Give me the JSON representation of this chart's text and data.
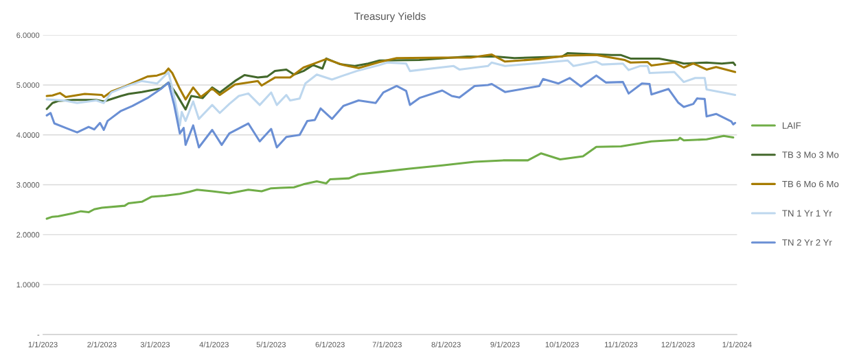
{
  "chart_data": {
    "type": "line",
    "title": "Treasury Yields",
    "xlim": [
      "2023-01-01",
      "2024-01-01"
    ],
    "xticks": [
      {
        "value": "2023-01-01",
        "label": "1/1/2023"
      },
      {
        "value": "2023-02-01",
        "label": "2/1/2023"
      },
      {
        "value": "2023-03-01",
        "label": "3/1/2023"
      },
      {
        "value": "2023-04-01",
        "label": "4/1/2023"
      },
      {
        "value": "2023-05-01",
        "label": "5/1/2023"
      },
      {
        "value": "2023-06-01",
        "label": "6/1/2023"
      },
      {
        "value": "2023-07-01",
        "label": "7/1/2023"
      },
      {
        "value": "2023-08-01",
        "label": "8/1/2023"
      },
      {
        "value": "2023-09-01",
        "label": "9/1/2023"
      },
      {
        "value": "2023-10-01",
        "label": "10/1/2023"
      },
      {
        "value": "2023-11-01",
        "label": "11/1/2023"
      },
      {
        "value": "2023-12-01",
        "label": "12/1/2023"
      },
      {
        "value": "2024-01-01",
        "label": "1/1/2024"
      }
    ],
    "ylim": [
      0,
      6
    ],
    "yticks": [
      {
        "value": 0,
        "label": "-"
      },
      {
        "value": 1,
        "label": "1.0000"
      },
      {
        "value": 2,
        "label": "2.0000"
      },
      {
        "value": 3,
        "label": "3.0000"
      },
      {
        "value": 4,
        "label": "4.0000"
      },
      {
        "value": 5,
        "label": "5.0000"
      },
      {
        "value": 6,
        "label": "6.0000"
      }
    ],
    "grid": "y",
    "legend": "right",
    "marker": "none",
    "line_style": "solid",
    "series": [
      {
        "name": "LAIF",
        "color": "#70ad47",
        "x": [
          "2023-01-03",
          "2023-01-06",
          "2023-01-09",
          "2023-01-17",
          "2023-01-21",
          "2023-01-25",
          "2023-01-28",
          "2023-02-01",
          "2023-02-13",
          "2023-02-15",
          "2023-02-22",
          "2023-02-27",
          "2023-03-06",
          "2023-03-14",
          "2023-03-19",
          "2023-03-23",
          "2023-03-31",
          "2023-04-09",
          "2023-04-19",
          "2023-04-26",
          "2023-05-01",
          "2023-05-06",
          "2023-05-13",
          "2023-05-18",
          "2023-05-25",
          "2023-05-30",
          "2023-06-01",
          "2023-06-11",
          "2023-06-16",
          "2023-06-28",
          "2023-07-12",
          "2023-07-30",
          "2023-08-16",
          "2023-08-31",
          "2023-09-13",
          "2023-09-20",
          "2023-09-30",
          "2023-10-12",
          "2023-10-19",
          "2023-11-01",
          "2023-11-17",
          "2023-12-01",
          "2023-12-02",
          "2023-12-04",
          "2023-12-16",
          "2023-12-25",
          "2023-12-30"
        ],
        "values": [
          2.32,
          2.36,
          2.37,
          2.43,
          2.47,
          2.45,
          2.51,
          2.54,
          2.58,
          2.63,
          2.66,
          2.76,
          2.78,
          2.82,
          2.86,
          2.9,
          2.87,
          2.83,
          2.9,
          2.87,
          2.93,
          2.94,
          2.95,
          3.01,
          3.07,
          3.03,
          3.11,
          3.13,
          3.21,
          3.26,
          3.32,
          3.39,
          3.46,
          3.49,
          3.49,
          3.63,
          3.51,
          3.57,
          3.76,
          3.77,
          3.87,
          3.9,
          3.94,
          3.89,
          3.91,
          3.98,
          3.95
        ]
      },
      {
        "name": "TB 3 Mo 3 Mo",
        "color": "#43682b",
        "x": [
          "2023-01-03",
          "2023-01-06",
          "2023-01-09",
          "2023-01-17",
          "2023-01-29",
          "2023-02-02",
          "2023-02-11",
          "2023-02-15",
          "2023-02-22",
          "2023-03-04",
          "2023-03-08",
          "2023-03-12",
          "2023-03-17",
          "2023-03-20",
          "2023-03-26",
          "2023-03-31",
          "2023-04-04",
          "2023-04-12",
          "2023-04-17",
          "2023-04-24",
          "2023-04-29",
          "2023-05-03",
          "2023-05-09",
          "2023-05-13",
          "2023-05-18",
          "2023-05-23",
          "2023-05-28",
          "2023-05-30",
          "2023-06-06",
          "2023-06-14",
          "2023-06-21",
          "2023-06-27",
          "2023-07-18",
          "2023-08-12",
          "2023-08-27",
          "2023-09-06",
          "2023-10-01",
          "2023-10-04",
          "2023-10-27",
          "2023-11-01",
          "2023-11-06",
          "2023-11-21",
          "2023-12-01",
          "2023-12-04",
          "2023-12-16",
          "2023-12-24",
          "2023-12-30",
          "2023-12-31"
        ],
        "values": [
          4.52,
          4.64,
          4.68,
          4.7,
          4.7,
          4.67,
          4.78,
          4.82,
          4.86,
          4.93,
          5.05,
          4.83,
          4.51,
          4.78,
          4.74,
          4.95,
          4.85,
          5.08,
          5.2,
          5.15,
          5.17,
          5.28,
          5.31,
          5.21,
          5.28,
          5.4,
          5.33,
          5.53,
          5.42,
          5.38,
          5.43,
          5.49,
          5.5,
          5.57,
          5.57,
          5.54,
          5.57,
          5.64,
          5.6,
          5.6,
          5.53,
          5.53,
          5.46,
          5.43,
          5.45,
          5.43,
          5.45,
          5.4
        ]
      },
      {
        "name": "TB 6 Mo 6 Mo",
        "color": "#a67c00",
        "x": [
          "2023-01-03",
          "2023-01-06",
          "2023-01-10",
          "2023-01-13",
          "2023-01-23",
          "2023-02-01",
          "2023-02-02",
          "2023-02-06",
          "2023-02-13",
          "2023-02-25",
          "2023-03-02",
          "2023-03-06",
          "2023-03-08",
          "2023-03-10",
          "2023-03-14",
          "2023-03-17",
          "2023-03-21",
          "2023-03-25",
          "2023-03-31",
          "2023-04-04",
          "2023-04-12",
          "2023-04-24",
          "2023-04-26",
          "2023-05-03",
          "2023-05-11",
          "2023-05-18",
          "2023-05-23",
          "2023-05-30",
          "2023-06-08",
          "2023-06-16",
          "2023-06-27",
          "2023-07-06",
          "2023-07-30",
          "2023-08-14",
          "2023-08-25",
          "2023-09-01",
          "2023-09-19",
          "2023-10-04",
          "2023-10-19",
          "2023-11-03",
          "2023-11-06",
          "2023-11-15",
          "2023-11-17",
          "2023-11-29",
          "2023-12-04",
          "2023-12-09",
          "2023-12-16",
          "2023-12-21",
          "2023-12-31"
        ],
        "values": [
          4.78,
          4.79,
          4.84,
          4.76,
          4.82,
          4.8,
          4.76,
          4.87,
          4.97,
          5.17,
          5.19,
          5.24,
          5.33,
          5.24,
          4.92,
          4.71,
          4.95,
          4.76,
          4.93,
          4.8,
          5.01,
          5.08,
          4.99,
          5.15,
          5.15,
          5.35,
          5.42,
          5.52,
          5.4,
          5.34,
          5.46,
          5.54,
          5.55,
          5.55,
          5.61,
          5.47,
          5.52,
          5.59,
          5.6,
          5.5,
          5.45,
          5.46,
          5.39,
          5.45,
          5.35,
          5.43,
          5.31,
          5.36,
          5.26
        ]
      },
      {
        "name": "TN 1 Yr 1 Yr",
        "color": "#bdd7ee",
        "x": [
          "2023-01-03",
          "2023-01-12",
          "2023-01-19",
          "2023-01-29",
          "2023-02-02",
          "2023-02-06",
          "2023-02-13",
          "2023-02-22",
          "2023-03-02",
          "2023-03-08",
          "2023-03-11",
          "2023-03-14",
          "2023-03-15",
          "2023-03-17",
          "2023-03-21",
          "2023-03-24",
          "2023-03-31",
          "2023-04-04",
          "2023-04-09",
          "2023-04-14",
          "2023-04-19",
          "2023-04-25",
          "2023-05-01",
          "2023-05-04",
          "2023-05-09",
          "2023-05-11",
          "2023-05-16",
          "2023-05-19",
          "2023-05-25",
          "2023-06-02",
          "2023-06-08",
          "2023-06-15",
          "2023-06-27",
          "2023-07-01",
          "2023-07-11",
          "2023-07-13",
          "2023-07-24",
          "2023-08-05",
          "2023-08-08",
          "2023-08-23",
          "2023-08-25",
          "2023-09-01",
          "2023-10-04",
          "2023-10-07",
          "2023-10-19",
          "2023-10-22",
          "2023-11-02",
          "2023-11-05",
          "2023-11-11",
          "2023-11-15",
          "2023-11-16",
          "2023-11-29",
          "2023-12-04",
          "2023-12-10",
          "2023-12-15",
          "2023-12-16",
          "2023-12-26",
          "2023-12-31"
        ],
        "values": [
          4.71,
          4.69,
          4.64,
          4.69,
          4.64,
          4.85,
          4.96,
          5.08,
          5.03,
          5.26,
          4.78,
          4.19,
          4.46,
          4.28,
          4.67,
          4.32,
          4.6,
          4.44,
          4.62,
          4.78,
          4.83,
          4.6,
          4.85,
          4.6,
          4.8,
          4.69,
          4.73,
          5.03,
          5.21,
          5.11,
          5.19,
          5.28,
          5.4,
          5.45,
          5.43,
          5.28,
          5.33,
          5.38,
          5.31,
          5.38,
          5.45,
          5.38,
          5.49,
          5.38,
          5.47,
          5.41,
          5.43,
          5.3,
          5.38,
          5.38,
          5.24,
          5.26,
          5.06,
          5.14,
          5.14,
          4.91,
          4.84,
          4.8
        ]
      },
      {
        "name": "TN 2 Yr 2 Yr",
        "color": "#6a8fd4",
        "x": [
          "2023-01-03",
          "2023-01-05",
          "2023-01-07",
          "2023-01-13",
          "2023-01-19",
          "2023-01-25",
          "2023-01-28",
          "2023-01-31",
          "2023-02-02",
          "2023-02-04",
          "2023-02-11",
          "2023-02-17",
          "2023-02-25",
          "2023-03-04",
          "2023-03-08",
          "2023-03-11",
          "2023-03-14",
          "2023-03-16",
          "2023-03-17",
          "2023-03-21",
          "2023-03-24",
          "2023-03-31",
          "2023-04-05",
          "2023-04-09",
          "2023-04-19",
          "2023-04-25",
          "2023-05-01",
          "2023-05-04",
          "2023-05-09",
          "2023-05-16",
          "2023-05-20",
          "2023-05-24",
          "2023-05-27",
          "2023-06-02",
          "2023-06-08",
          "2023-06-16",
          "2023-06-25",
          "2023-06-29",
          "2023-07-06",
          "2023-07-11",
          "2023-07-13",
          "2023-07-18",
          "2023-07-30",
          "2023-08-04",
          "2023-08-08",
          "2023-08-16",
          "2023-08-23",
          "2023-08-25",
          "2023-09-01",
          "2023-09-19",
          "2023-09-21",
          "2023-09-29",
          "2023-10-05",
          "2023-10-11",
          "2023-10-19",
          "2023-10-24",
          "2023-11-02",
          "2023-11-05",
          "2023-11-12",
          "2023-11-16",
          "2023-11-17",
          "2023-11-26",
          "2023-12-01",
          "2023-12-04",
          "2023-12-09",
          "2023-12-11",
          "2023-12-15",
          "2023-12-16",
          "2023-12-21",
          "2023-12-29",
          "2023-12-30",
          "2023-12-31"
        ],
        "values": [
          4.39,
          4.44,
          4.23,
          4.14,
          4.05,
          4.16,
          4.11,
          4.24,
          4.1,
          4.28,
          4.48,
          4.58,
          4.74,
          4.92,
          5.05,
          4.6,
          4.03,
          4.14,
          3.8,
          4.19,
          3.75,
          4.1,
          3.8,
          4.03,
          4.23,
          3.87,
          4.12,
          3.75,
          3.96,
          4.0,
          4.28,
          4.3,
          4.53,
          4.32,
          4.58,
          4.69,
          4.64,
          4.85,
          4.98,
          4.88,
          4.6,
          4.74,
          4.89,
          4.78,
          4.75,
          4.98,
          5.0,
          5.02,
          4.86,
          4.98,
          5.12,
          5.03,
          5.14,
          4.97,
          5.19,
          5.05,
          5.06,
          4.83,
          5.03,
          5.02,
          4.81,
          4.92,
          4.65,
          4.56,
          4.62,
          4.73,
          4.72,
          4.37,
          4.42,
          4.27,
          4.21,
          4.24
        ]
      }
    ]
  }
}
